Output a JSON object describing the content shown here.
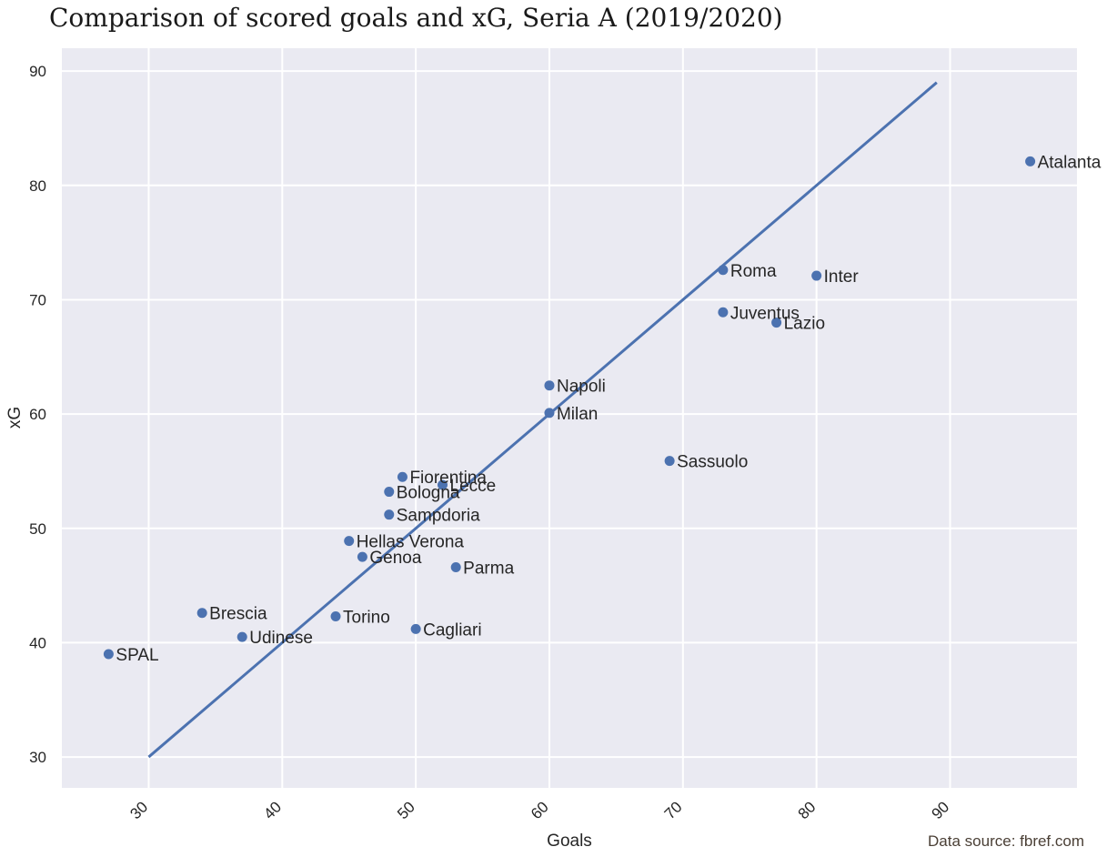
{
  "title": "Comparison of scored goals and xG, Seria A (2019/2020)",
  "source": "Data source: fbref.com",
  "colors": {
    "plot_background": "#eaeaf2",
    "grid": "#ffffff",
    "marker": "#4c72b0",
    "line": "#4c72b0",
    "text": "#262626"
  },
  "chart_data": {
    "type": "scatter",
    "title": "Comparison of scored goals and xG, Seria A (2019/2020)",
    "xlabel": "Goals",
    "ylabel": "xG",
    "xlim": [
      23.5,
      99.5
    ],
    "ylim": [
      27.3,
      92.0
    ],
    "xticks": [
      30,
      40,
      50,
      60,
      70,
      80,
      90
    ],
    "yticks": [
      30,
      40,
      50,
      60,
      70,
      80,
      90
    ],
    "grid": true,
    "reference_line": {
      "x": [
        30,
        89
      ],
      "y": [
        30,
        89
      ]
    },
    "points": [
      {
        "label": "Atalanta",
        "x": 96,
        "y": 82.1
      },
      {
        "label": "Roma",
        "x": 73,
        "y": 72.6
      },
      {
        "label": "Inter",
        "x": 80,
        "y": 72.1
      },
      {
        "label": "Juventus",
        "x": 73,
        "y": 68.9
      },
      {
        "label": "Lazio",
        "x": 77,
        "y": 68.0
      },
      {
        "label": "Napoli",
        "x": 60,
        "y": 62.5
      },
      {
        "label": "Milan",
        "x": 60,
        "y": 60.1
      },
      {
        "label": "Sassuolo",
        "x": 69,
        "y": 55.9
      },
      {
        "label": "Fiorentina",
        "x": 49,
        "y": 54.5
      },
      {
        "label": "Lecce",
        "x": 52,
        "y": 53.8
      },
      {
        "label": "Bologna",
        "x": 48,
        "y": 53.2
      },
      {
        "label": "Sampdoria",
        "x": 48,
        "y": 51.2
      },
      {
        "label": "Hellas Verona",
        "x": 45,
        "y": 48.9
      },
      {
        "label": "Genoa",
        "x": 46,
        "y": 47.5
      },
      {
        "label": "Parma",
        "x": 53,
        "y": 46.6
      },
      {
        "label": "Brescia",
        "x": 34,
        "y": 42.6
      },
      {
        "label": "Torino",
        "x": 44,
        "y": 42.3
      },
      {
        "label": "Cagliari",
        "x": 50,
        "y": 41.2
      },
      {
        "label": "Udinese",
        "x": 37,
        "y": 40.5
      },
      {
        "label": "SPAL",
        "x": 27,
        "y": 39.0
      }
    ]
  }
}
